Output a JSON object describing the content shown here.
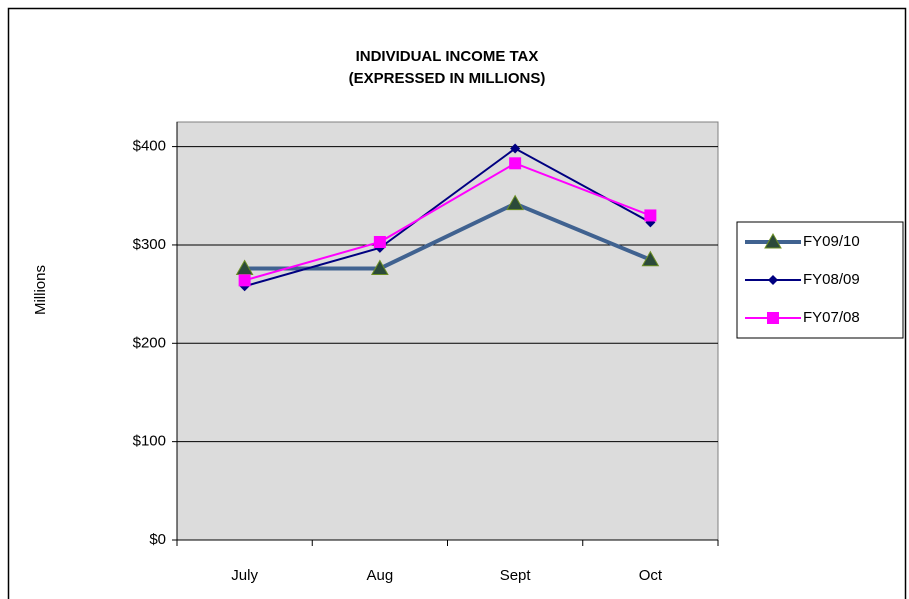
{
  "chart_data": {
    "type": "line",
    "title": [
      "INDIVIDUAL INCOME TAX",
      "(EXPRESSED IN MILLIONS)"
    ],
    "y_label": "Millions",
    "categories": [
      "July",
      "Aug",
      "Sept",
      "Oct"
    ],
    "series": [
      {
        "name": "FY09/10",
        "color": "#406290",
        "marker": "triangle",
        "values": [
          276,
          276,
          342,
          285
        ]
      },
      {
        "name": "FY08/09",
        "color": "#000080",
        "marker": "diamond",
        "values": [
          258,
          297,
          398,
          323
        ]
      },
      {
        "name": "FY07/08",
        "color": "#ff00ff",
        "marker": "square",
        "values": [
          264,
          303,
          383,
          330
        ]
      }
    ],
    "ylim": [
      0,
      425
    ],
    "yticks": [
      {
        "value": 0,
        "label": "$0"
      },
      {
        "value": 100,
        "label": "$100"
      },
      {
        "value": 200,
        "label": "$200"
      },
      {
        "value": 300,
        "label": "$300"
      },
      {
        "value": 400,
        "label": "$400"
      }
    ],
    "grid": true,
    "legend": "right"
  }
}
